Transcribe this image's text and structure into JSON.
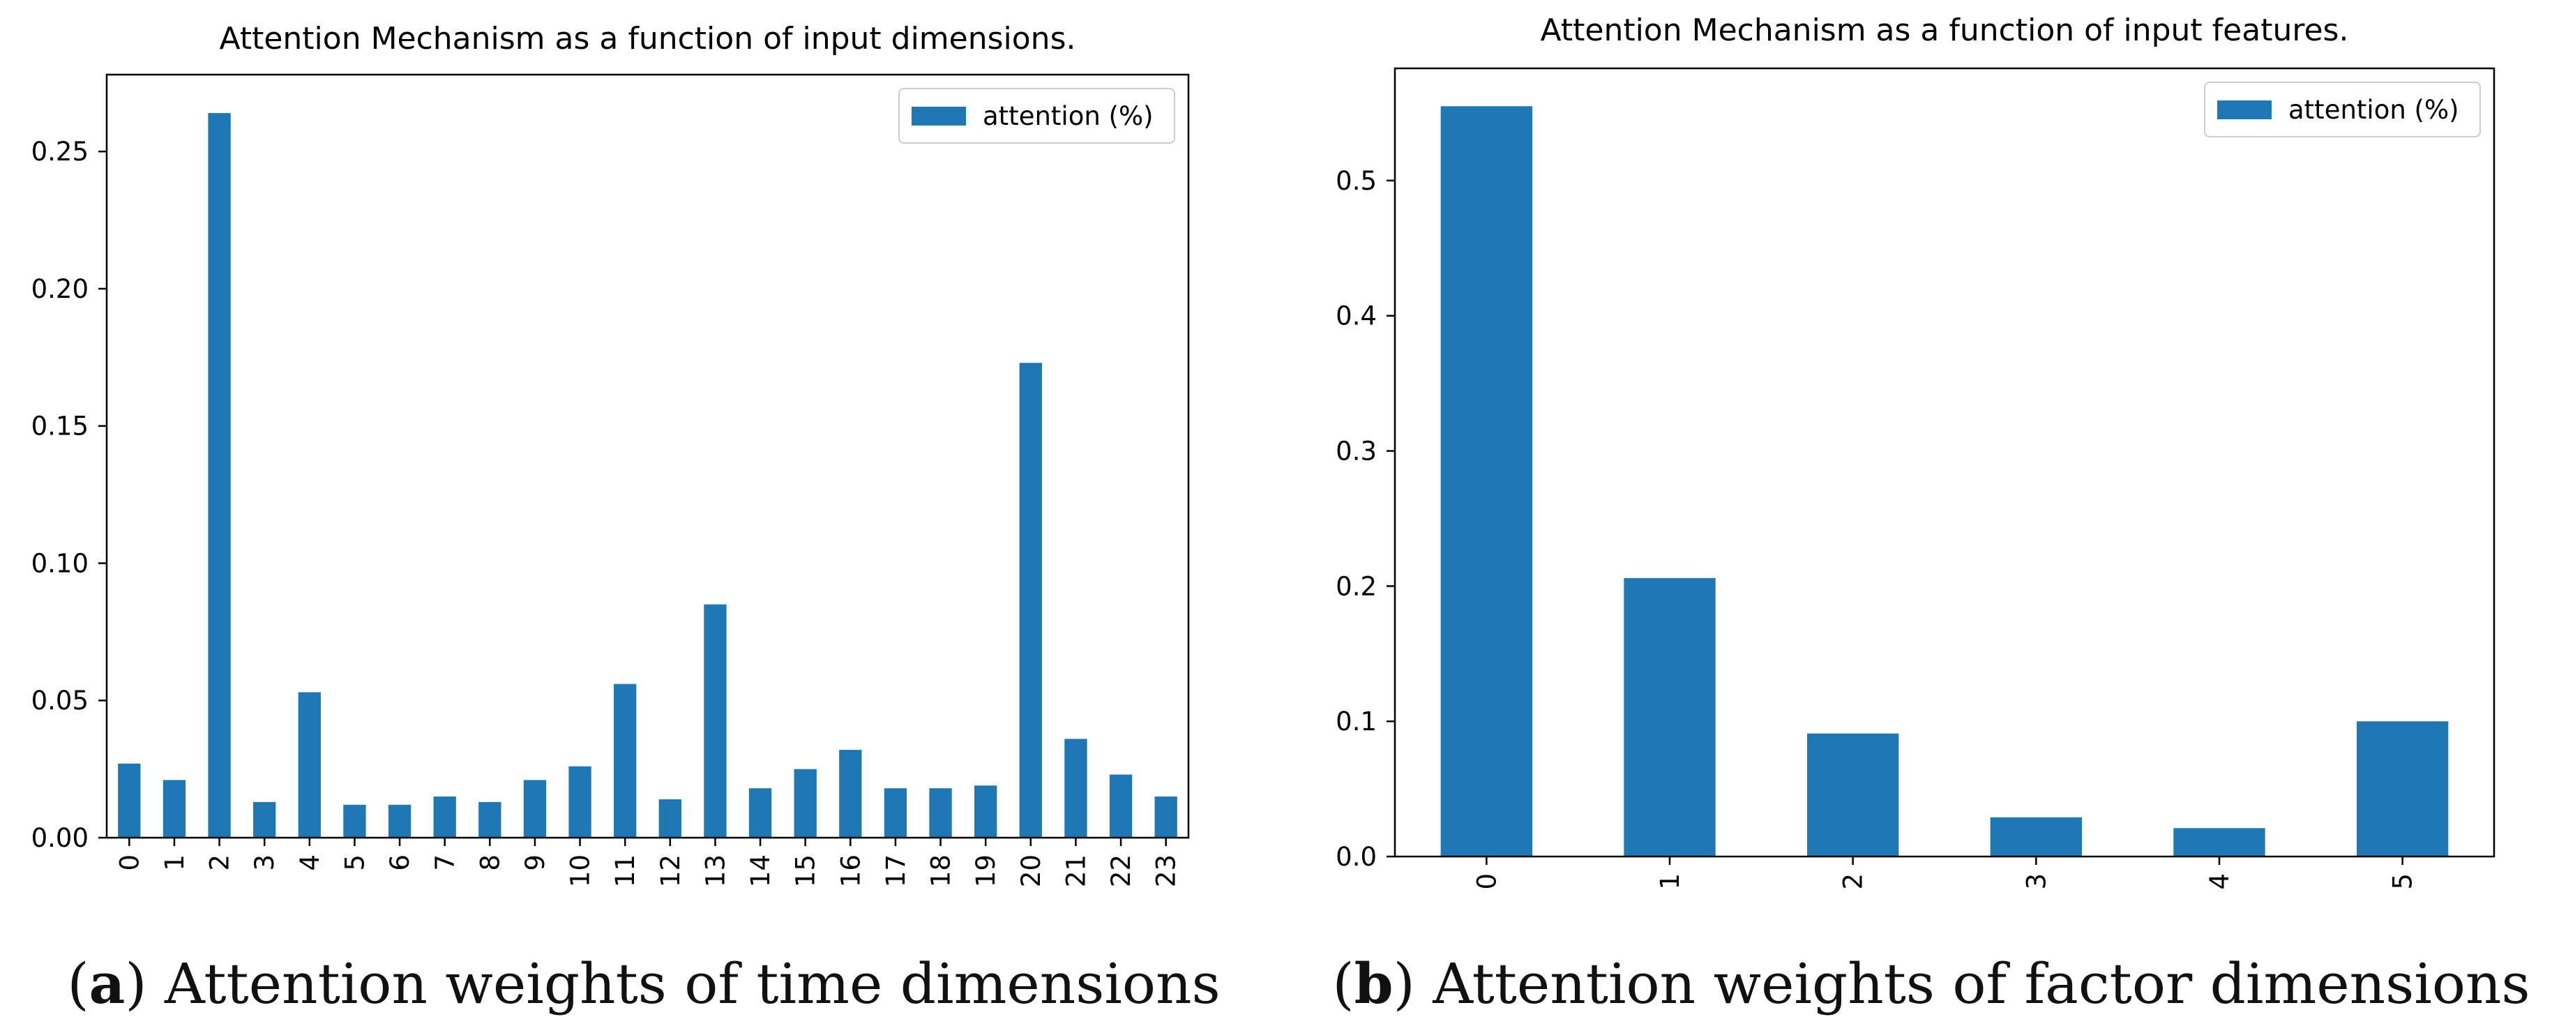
{
  "colors": {
    "bar": "#1f77b4",
    "axis": "#000000",
    "text": "#000000"
  },
  "chart_data": [
    {
      "type": "bar",
      "title": "Attention Mechanism as a function of input dimensions.",
      "xlabel": "",
      "ylabel": "",
      "categories": [
        "0",
        "1",
        "2",
        "3",
        "4",
        "5",
        "6",
        "7",
        "8",
        "9",
        "10",
        "11",
        "12",
        "13",
        "14",
        "15",
        "16",
        "17",
        "18",
        "19",
        "20",
        "21",
        "22",
        "23"
      ],
      "series": [
        {
          "name": "attention (%)",
          "values": [
            0.027,
            0.021,
            0.264,
            0.013,
            0.053,
            0.012,
            0.012,
            0.015,
            0.013,
            0.021,
            0.026,
            0.056,
            0.014,
            0.085,
            0.018,
            0.025,
            0.032,
            0.018,
            0.018,
            0.019,
            0.173,
            0.036,
            0.023,
            0.015
          ]
        }
      ],
      "ylim": [
        0,
        0.278
      ],
      "yticks": [
        0.0,
        0.05,
        0.1,
        0.15,
        0.2,
        0.25
      ],
      "ytick_labels": [
        "0.00",
        "0.05",
        "0.10",
        "0.15",
        "0.20",
        "0.25"
      ],
      "legend": "top-right",
      "grid": false
    },
    {
      "type": "bar",
      "title": "Attention Mechanism as a function of input features.",
      "xlabel": "",
      "ylabel": "",
      "categories": [
        "0",
        "1",
        "2",
        "3",
        "4",
        "5"
      ],
      "series": [
        {
          "name": "attention (%)",
          "values": [
            0.555,
            0.206,
            0.091,
            0.029,
            0.021,
            0.1
          ]
        }
      ],
      "ylim": [
        0,
        0.583
      ],
      "yticks": [
        0.0,
        0.1,
        0.2,
        0.3,
        0.4,
        0.5
      ],
      "ytick_labels": [
        "0.0",
        "0.1",
        "0.2",
        "0.3",
        "0.4",
        "0.5"
      ],
      "legend": "top-right",
      "grid": false
    }
  ],
  "captions": [
    {
      "label": "a",
      "text": " Attention weights of time dimensions"
    },
    {
      "label": "b",
      "text": " Attention weights of factor dimensions"
    }
  ]
}
